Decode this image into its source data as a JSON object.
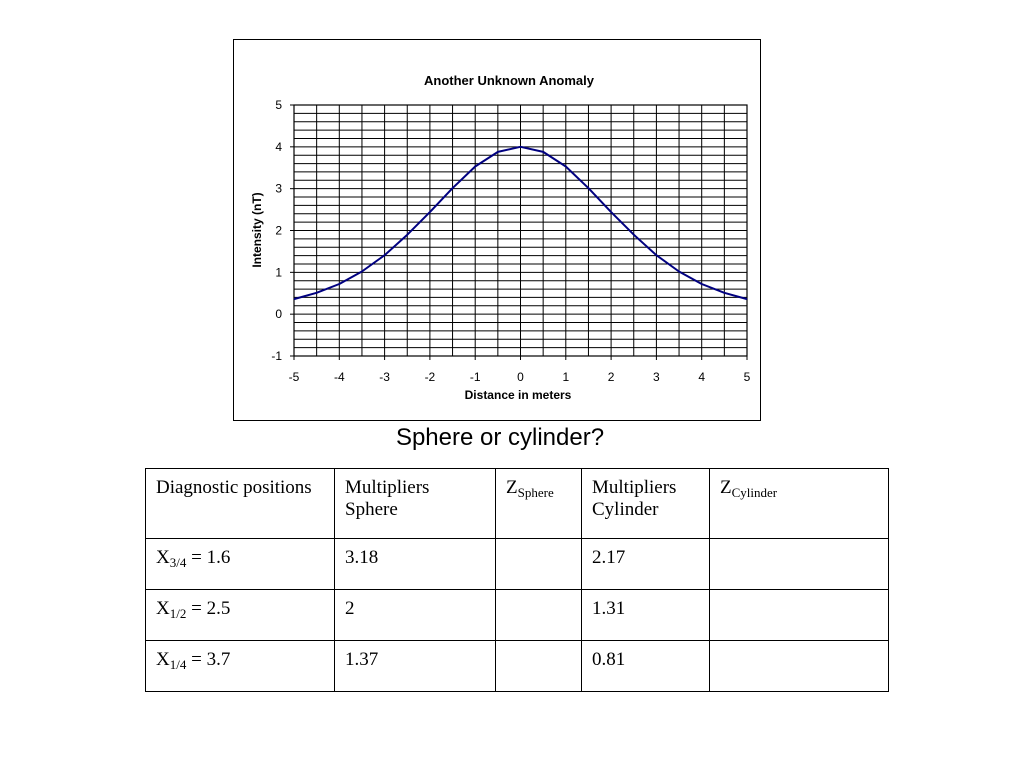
{
  "slide": {
    "title": "Sphere or cylinder?"
  },
  "chart_data": {
    "type": "line",
    "title": "Another Unknown Anomaly",
    "xlabel": "Distance in meters",
    "ylabel": "Intensity (nT)",
    "xlim": [
      -5,
      5
    ],
    "ylim": [
      -1,
      5
    ],
    "xticks": [
      "-5",
      "-4",
      "-3",
      "-2",
      "-1",
      "0",
      "1",
      "2",
      "3",
      "4",
      "5"
    ],
    "yticks": [
      "-1",
      "0",
      "1",
      "2",
      "3",
      "4",
      "5"
    ],
    "grid": true,
    "line_color": "#000080",
    "series": [
      {
        "x": [
          -5,
          -4.5,
          -4,
          -3.5,
          -3,
          -2.5,
          -2,
          -1.5,
          -1,
          -0.5,
          0,
          0.5,
          1,
          1.5,
          2,
          2.5,
          3,
          3.5,
          4,
          4.5,
          5
        ],
        "values": [
          0.36,
          0.51,
          0.72,
          1.02,
          1.41,
          1.9,
          2.44,
          3.01,
          3.53,
          3.88,
          4.0,
          3.88,
          3.53,
          3.01,
          2.44,
          1.9,
          1.41,
          1.02,
          0.72,
          0.51,
          0.36
        ]
      }
    ]
  },
  "table": {
    "headers": [
      {
        "main": "Diagnostic positions",
        "sub": ""
      },
      {
        "main": "Multipliers Sphere",
        "sub": ""
      },
      {
        "main": "Z",
        "sub": "Sphere"
      },
      {
        "main": "Multipliers Cylinder",
        "sub": ""
      },
      {
        "main": "Z",
        "sub": "Cylinder"
      }
    ],
    "rows": [
      {
        "pos_base": "X",
        "pos_sub": "3/4",
        "pos_value": " = 1.6",
        "mult_sphere": "3.18",
        "z_sphere": "",
        "mult_cylinder": "2.17",
        "z_cylinder": ""
      },
      {
        "pos_base": "X",
        "pos_sub": "1/2",
        "pos_value": " = 2.5",
        "mult_sphere": "2",
        "z_sphere": "",
        "mult_cylinder": "1.31",
        "z_cylinder": ""
      },
      {
        "pos_base": "X",
        "pos_sub": "1/4",
        "pos_value": " = 3.7",
        "mult_sphere": "1.37",
        "z_sphere": "",
        "mult_cylinder": "0.81",
        "z_cylinder": ""
      }
    ]
  }
}
